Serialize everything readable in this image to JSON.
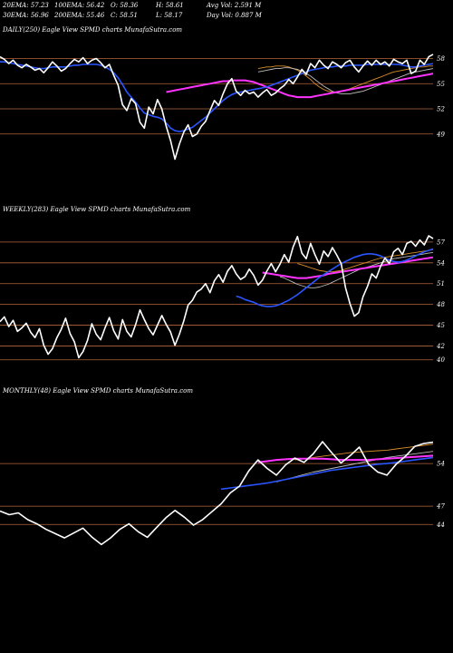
{
  "header": {
    "row1": [
      "20EMA: 57.23",
      "100EMA: 56.42",
      "O: 58.36",
      "H: 58.61",
      "Avg Vol: 2.591 M"
    ],
    "row2": [
      "30EMA: 56.96",
      "200EMA: 55.46",
      "C: 58.51",
      "L: 58.17",
      "Day Vol: 0.887 M"
    ]
  },
  "colors": {
    "background": "#000000",
    "price": "#ffffff",
    "ema_fast": "#2a55ff",
    "ema_slow": "#ff33ff",
    "ema_mid": "#bbbbbb",
    "ema_orange": "#d98c2a",
    "grid": "#b4643a"
  },
  "chart_data": [
    {
      "type": "line",
      "title": "DAILY(250) Eagle  View  SPMD charts MunafaSutra.com",
      "yticks": [
        58,
        55,
        52,
        49
      ],
      "ylim": [
        44,
        60
      ],
      "series": [
        {
          "role": "price",
          "values": [
            58.2,
            57.9,
            57.4,
            57.8,
            57.2,
            56.9,
            57.3,
            57.0,
            56.6,
            56.8,
            56.3,
            56.9,
            57.6,
            57.1,
            56.5,
            56.8,
            57.4,
            57.9,
            57.6,
            58.1,
            57.4,
            57.8,
            58.0,
            57.5,
            56.9,
            57.3,
            56.0,
            54.8,
            52.5,
            51.8,
            53.2,
            52.6,
            50.4,
            49.7,
            52.2,
            51.4,
            53.1,
            52.0,
            49.9,
            48.2,
            46.0,
            47.8,
            49.2,
            50.1,
            48.7,
            49.0,
            49.9,
            50.5,
            51.8,
            53.0,
            52.4,
            53.8,
            55.0,
            55.6,
            54.1,
            53.6,
            54.2,
            53.8,
            54.0,
            53.4,
            53.9,
            54.3,
            53.6,
            53.9,
            54.4,
            54.8,
            55.5,
            55.0,
            55.8,
            56.7,
            56.1,
            57.4,
            56.9,
            57.8,
            57.2,
            56.8,
            57.6,
            57.3,
            56.9,
            57.5,
            57.8,
            57.0,
            56.4,
            57.1,
            57.7,
            57.2,
            57.8,
            57.3,
            57.6,
            57.1,
            57.9,
            57.6,
            57.4,
            57.8,
            56.2,
            56.5,
            57.8,
            57.3,
            58.2,
            58.5
          ]
        },
        {
          "role": "ema_fast",
          "values": [
            57.6,
            57.6,
            57.5,
            57.4,
            57.3,
            57.2,
            57.1,
            57.0,
            56.9,
            56.8,
            56.8,
            56.9,
            57.0,
            57.0,
            57.0,
            57.0,
            57.1,
            57.2,
            57.2,
            57.3,
            57.3,
            57.3,
            57.3,
            57.2,
            57.0,
            56.7,
            56.3,
            55.7,
            54.9,
            54.0,
            53.4,
            52.8,
            52.1,
            51.5,
            51.3,
            51.1,
            51.0,
            50.8,
            50.3,
            49.7,
            49.4,
            49.3,
            49.4,
            49.6,
            49.8,
            50.2,
            50.6,
            51.0,
            51.5,
            52.0,
            52.5,
            53.0,
            53.4,
            53.7,
            53.9,
            54.0,
            54.1,
            54.2,
            54.3,
            54.4,
            54.5,
            54.6,
            54.8,
            55.0,
            55.2,
            55.4,
            55.6,
            55.8,
            56.0,
            56.2,
            56.4,
            56.6,
            56.7,
            56.8,
            56.9,
            57.0,
            57.0,
            57.1,
            57.1,
            57.1,
            57.2,
            57.2,
            57.2,
            57.2,
            57.3,
            57.3,
            57.3,
            57.3,
            57.3,
            57.3,
            57.3,
            57.3,
            57.2,
            57.1,
            57.0,
            57.0,
            57.1,
            57.2,
            57.3,
            57.4
          ]
        },
        {
          "role": "ema_slow",
          "values": [
            54.0,
            54.1,
            54.2,
            54.3,
            54.4,
            54.5,
            54.6,
            54.7,
            54.8,
            54.9,
            55.0,
            55.1,
            55.2,
            55.3,
            55.3,
            55.4,
            55.4,
            55.4,
            55.4,
            55.3,
            55.2,
            55.0,
            54.8,
            54.6,
            54.4,
            54.2,
            54.0,
            53.8,
            53.6,
            53.5,
            53.4,
            53.4,
            53.4,
            53.4,
            53.5,
            53.6,
            53.7,
            53.8,
            53.9,
            54.0,
            54.1,
            54.2,
            54.3,
            54.4,
            54.5,
            54.6,
            54.7,
            54.8,
            54.9,
            55.0,
            55.1,
            55.2,
            55.3,
            55.4,
            55.5,
            55.6,
            55.7,
            55.8,
            55.9,
            56.0,
            56.1,
            56.2
          ]
        },
        {
          "role": "ema_mid",
          "values": [
            56.4,
            56.5,
            56.6,
            56.7,
            56.8,
            56.8,
            56.9,
            56.9,
            56.8,
            56.7,
            56.5,
            56.2,
            55.9,
            55.5,
            55.1,
            54.7,
            54.4,
            54.1,
            53.9,
            53.8,
            53.8,
            53.8,
            53.9,
            54.0,
            54.1,
            54.3,
            54.5,
            54.7,
            54.9,
            55.1,
            55.3,
            55.5,
            55.7,
            55.9,
            56.1,
            56.3,
            56.4,
            56.5,
            56.6,
            56.7,
            56.8
          ]
        },
        {
          "role": "ema_orange",
          "values": [
            56.8,
            56.9,
            57.0,
            57.0,
            57.1,
            57.1,
            57.1,
            57.0,
            56.8,
            56.6,
            56.3,
            55.9,
            55.5,
            55.0,
            54.6,
            54.3,
            54.1,
            54.0,
            54.0,
            54.1,
            54.2,
            54.4,
            54.6,
            54.8,
            55.0,
            55.2,
            55.4,
            55.6,
            55.8,
            56.0,
            56.2,
            56.4,
            56.5,
            56.6,
            56.7,
            56.8,
            56.9,
            57.0,
            57.0,
            57.1,
            57.1
          ]
        }
      ]
    },
    {
      "type": "line",
      "title": "WEEKLY(283) Eagle  View  SPMD charts MunafaSutra.com",
      "yticks": [
        57,
        54,
        51,
        48,
        45,
        42,
        40
      ],
      "ylim": [
        38,
        60
      ],
      "series": [
        {
          "role": "price",
          "values": [
            45.5,
            46.2,
            44.8,
            45.7,
            44.1,
            44.6,
            45.3,
            44.0,
            43.2,
            44.5,
            42.1,
            40.8,
            41.6,
            43.2,
            44.4,
            46.0,
            43.8,
            42.6,
            40.3,
            41.2,
            42.8,
            45.2,
            43.7,
            42.9,
            44.6,
            46.1,
            44.2,
            43.0,
            45.8,
            44.1,
            43.3,
            45.1,
            47.2,
            45.8,
            44.5,
            43.6,
            45.0,
            46.4,
            45.1,
            44.0,
            42.1,
            43.7,
            45.6,
            47.9,
            48.6,
            49.8,
            50.2,
            51.0,
            49.7,
            51.4,
            52.3,
            51.2,
            52.8,
            53.6,
            52.4,
            51.6,
            52.0,
            53.1,
            52.2,
            50.8,
            51.5,
            52.8,
            53.9,
            52.7,
            53.8,
            55.2,
            54.1,
            56.3,
            57.8,
            55.4,
            54.6,
            56.8,
            55.2,
            53.8,
            55.7,
            54.9,
            56.2,
            55.1,
            53.9,
            50.4,
            48.1,
            46.3,
            46.8,
            49.1,
            50.6,
            52.4,
            51.8,
            53.5,
            54.7,
            53.9,
            55.6,
            56.1,
            55.2,
            56.8,
            57.1,
            56.4,
            57.3,
            56.6,
            57.9,
            57.5
          ]
        },
        {
          "role": "ema_fast",
          "values": [
            49.2,
            49.0,
            48.7,
            48.5,
            48.3,
            48.0,
            47.8,
            47.7,
            47.7,
            47.8,
            48.0,
            48.3,
            48.6,
            49.0,
            49.4,
            49.9,
            50.4,
            50.9,
            51.4,
            51.9,
            52.3,
            52.7,
            53.1,
            53.5,
            53.9,
            54.2,
            54.5,
            54.8,
            55.0,
            55.2,
            55.3,
            55.3,
            55.2,
            55.0,
            54.7,
            54.4,
            54.2,
            54.1,
            54.2,
            54.4,
            54.7,
            55.0,
            55.3,
            55.6,
            55.8,
            56.0
          ]
        },
        {
          "role": "ema_slow",
          "values": [
            52.6,
            52.5,
            52.4,
            52.3,
            52.2,
            52.1,
            52.0,
            51.9,
            51.8,
            51.8,
            51.8,
            51.9,
            52.0,
            52.1,
            52.2,
            52.4,
            52.5,
            52.6,
            52.7,
            52.8,
            52.9,
            53.0,
            53.1,
            53.2,
            53.3,
            53.4,
            53.5,
            53.6,
            53.7,
            53.8,
            53.9,
            54.0,
            54.1,
            54.2,
            54.3,
            54.4,
            54.5,
            54.6,
            54.7,
            54.8
          ]
        },
        {
          "role": "ema_mid",
          "values": [
            52.0,
            51.8,
            51.5,
            51.2,
            50.9,
            50.7,
            50.5,
            50.4,
            50.4,
            50.5,
            50.7,
            50.9,
            51.2,
            51.5,
            51.8,
            52.1,
            52.4,
            52.7,
            53.0,
            53.2,
            53.4,
            53.6,
            53.8,
            54.0,
            54.2,
            54.4,
            54.6,
            54.7,
            54.8,
            54.9,
            55.0,
            55.1,
            55.2,
            55.3,
            55.4,
            55.5
          ]
        },
        {
          "role": "ema_orange",
          "values": [
            53.9,
            53.7,
            53.5,
            53.3,
            53.1,
            52.9,
            52.8,
            52.7,
            52.7,
            52.8,
            52.9,
            53.1,
            53.3,
            53.5,
            53.7,
            53.9,
            54.1,
            54.3,
            54.5,
            54.7,
            54.8,
            54.9,
            55.0,
            55.1,
            55.2,
            55.3,
            55.4,
            55.5,
            55.6,
            55.7,
            55.8,
            55.9
          ]
        }
      ]
    },
    {
      "type": "line",
      "title": "MONTHLY(48) Eagle  View  SPMD charts MunafaSutra.com",
      "yticks": [
        54,
        47,
        44
      ],
      "ylim": [
        36,
        64
      ],
      "series": [
        {
          "role": "price",
          "values": [
            46.2,
            45.6,
            45.9,
            44.8,
            44.1,
            43.2,
            42.5,
            41.8,
            42.6,
            43.4,
            41.9,
            40.7,
            41.8,
            43.2,
            44.1,
            42.8,
            41.9,
            43.5,
            45.1,
            46.3,
            45.2,
            43.9,
            44.8,
            46.1,
            47.4,
            49.2,
            50.3,
            52.8,
            54.6,
            53.2,
            52.1,
            53.8,
            54.9,
            54.2,
            55.6,
            57.6,
            55.8,
            54.1,
            55.3,
            56.7,
            53.9,
            52.6,
            52.1,
            53.9,
            55.2,
            56.8,
            57.3,
            57.5
          ]
        },
        {
          "role": "ema_fast",
          "values": [
            49.8,
            50.0,
            50.2,
            50.4,
            50.6,
            50.8,
            51.1,
            51.4,
            51.7,
            52.0,
            52.3,
            52.6,
            52.9,
            53.1,
            53.3,
            53.5,
            53.7,
            53.9,
            54.0,
            54.2,
            54.4,
            54.6,
            54.8,
            55.0
          ]
        },
        {
          "role": "ema_slow",
          "values": [
            54.2,
            54.4,
            54.6,
            54.7,
            54.8,
            54.8,
            54.8,
            54.8,
            54.7,
            54.6,
            54.6,
            54.6,
            54.6,
            54.7,
            54.8,
            54.9,
            55.0,
            55.1,
            55.2,
            55.3
          ]
        },
        {
          "role": "ema_mid",
          "values": [
            51.0,
            51.4,
            51.8,
            52.2,
            52.6,
            52.9,
            53.2,
            53.5,
            53.8,
            54.1,
            54.4,
            54.7,
            55.0,
            55.2,
            55.4,
            55.6,
            55.8,
            56.0
          ]
        },
        {
          "role": "ema_orange",
          "values": [
            54.6,
            54.8,
            55.0,
            55.2,
            55.4,
            55.6,
            55.8,
            55.9,
            56.0,
            56.1,
            56.2,
            56.4,
            56.6,
            56.8,
            57.0,
            57.2
          ]
        }
      ]
    }
  ]
}
